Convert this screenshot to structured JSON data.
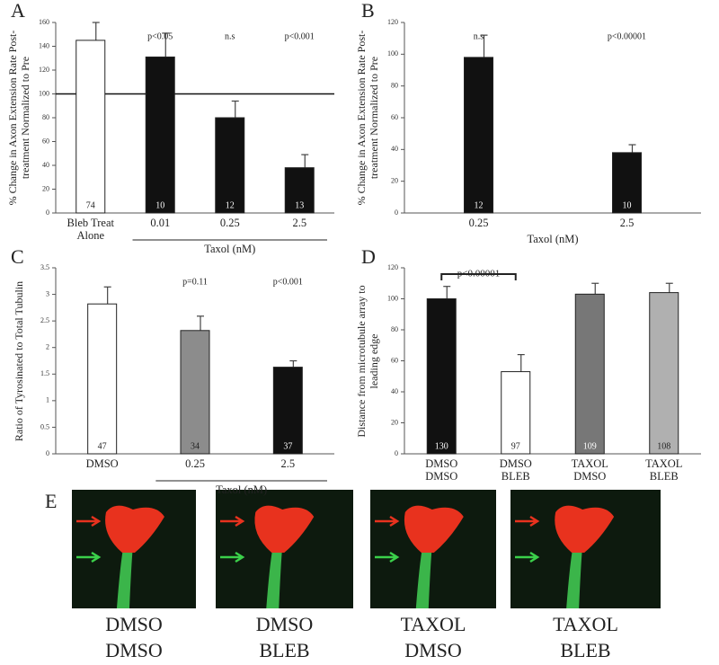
{
  "chart_data": [
    {
      "type": "bar",
      "panel_label": "A",
      "ylabel": "% Change in Axon Extension Rate Post-treatment Normalized to Pre",
      "categories": [
        "Bleb Treat Alone",
        "0.01",
        "0.25",
        "2.5"
      ],
      "group_label": "Taxol (nM)",
      "values": [
        145,
        131,
        80,
        38
      ],
      "errors": [
        15,
        20,
        14,
        11
      ],
      "colors": [
        "#ffffff",
        "#111111",
        "#111111",
        "#111111"
      ],
      "n": [
        74,
        10,
        12,
        13
      ],
      "p_labels": [
        null,
        "p<0.05",
        "n.s",
        "p<0.001"
      ],
      "ref_line": 100,
      "ylim": [
        0,
        160
      ],
      "yticks": [
        0,
        20,
        40,
        60,
        80,
        100,
        120,
        140,
        160
      ]
    },
    {
      "type": "bar",
      "panel_label": "B",
      "ylabel": "% Change in Axon Extension Rate Post-treatment Normalized to Pre",
      "categories": [
        "0.25",
        "2.5"
      ],
      "xlabel": "Taxol (nM)",
      "values": [
        98,
        38
      ],
      "errors": [
        14,
        5
      ],
      "colors": [
        "#111111",
        "#111111"
      ],
      "n": [
        12,
        10
      ],
      "p_labels": [
        "n.s",
        "p<0.00001"
      ],
      "ylim": [
        0,
        120
      ],
      "yticks": [
        0,
        20,
        40,
        60,
        80,
        100,
        120
      ]
    },
    {
      "type": "bar",
      "panel_label": "C",
      "ylabel": "Ratio of Tyrosinated to Total Tubulin",
      "categories": [
        "DMSO",
        "0.25",
        "2.5"
      ],
      "group_label": "Taxol (nM)",
      "values": [
        2.82,
        2.32,
        1.63
      ],
      "errors": [
        0.32,
        0.27,
        0.12
      ],
      "colors": [
        "#ffffff",
        "#8c8c8c",
        "#111111"
      ],
      "n": [
        47,
        34,
        37
      ],
      "p_labels": [
        null,
        "p=0.11",
        "p<0.001"
      ],
      "ylim": [
        0,
        3.5
      ],
      "yticks": [
        0,
        0.5,
        1,
        1.5,
        2,
        2.5,
        3,
        3.5
      ]
    },
    {
      "type": "bar",
      "panel_label": "D",
      "ylabel": "Distance from microtubule array to leading edge",
      "categories": [
        "DMSO DMSO",
        "DMSO BLEB",
        "TAXOL DMSO",
        "TAXOL BLEB"
      ],
      "values": [
        100,
        53,
        103,
        104
      ],
      "errors": [
        8,
        11,
        7,
        6
      ],
      "colors": [
        "#111111",
        "#ffffff",
        "#777777",
        "#b0b0b0"
      ],
      "n": [
        130,
        97,
        109,
        108
      ],
      "bracket_label": "p<0.00001",
      "ylim": [
        0,
        120
      ],
      "yticks": [
        0,
        20,
        40,
        60,
        80,
        100,
        120
      ]
    }
  ],
  "panel_e": {
    "label": "E",
    "captions": [
      "DMSO DMSO",
      "DMSO BLEB",
      "TAXOL DMSO",
      "TAXOL BLEB"
    ]
  }
}
